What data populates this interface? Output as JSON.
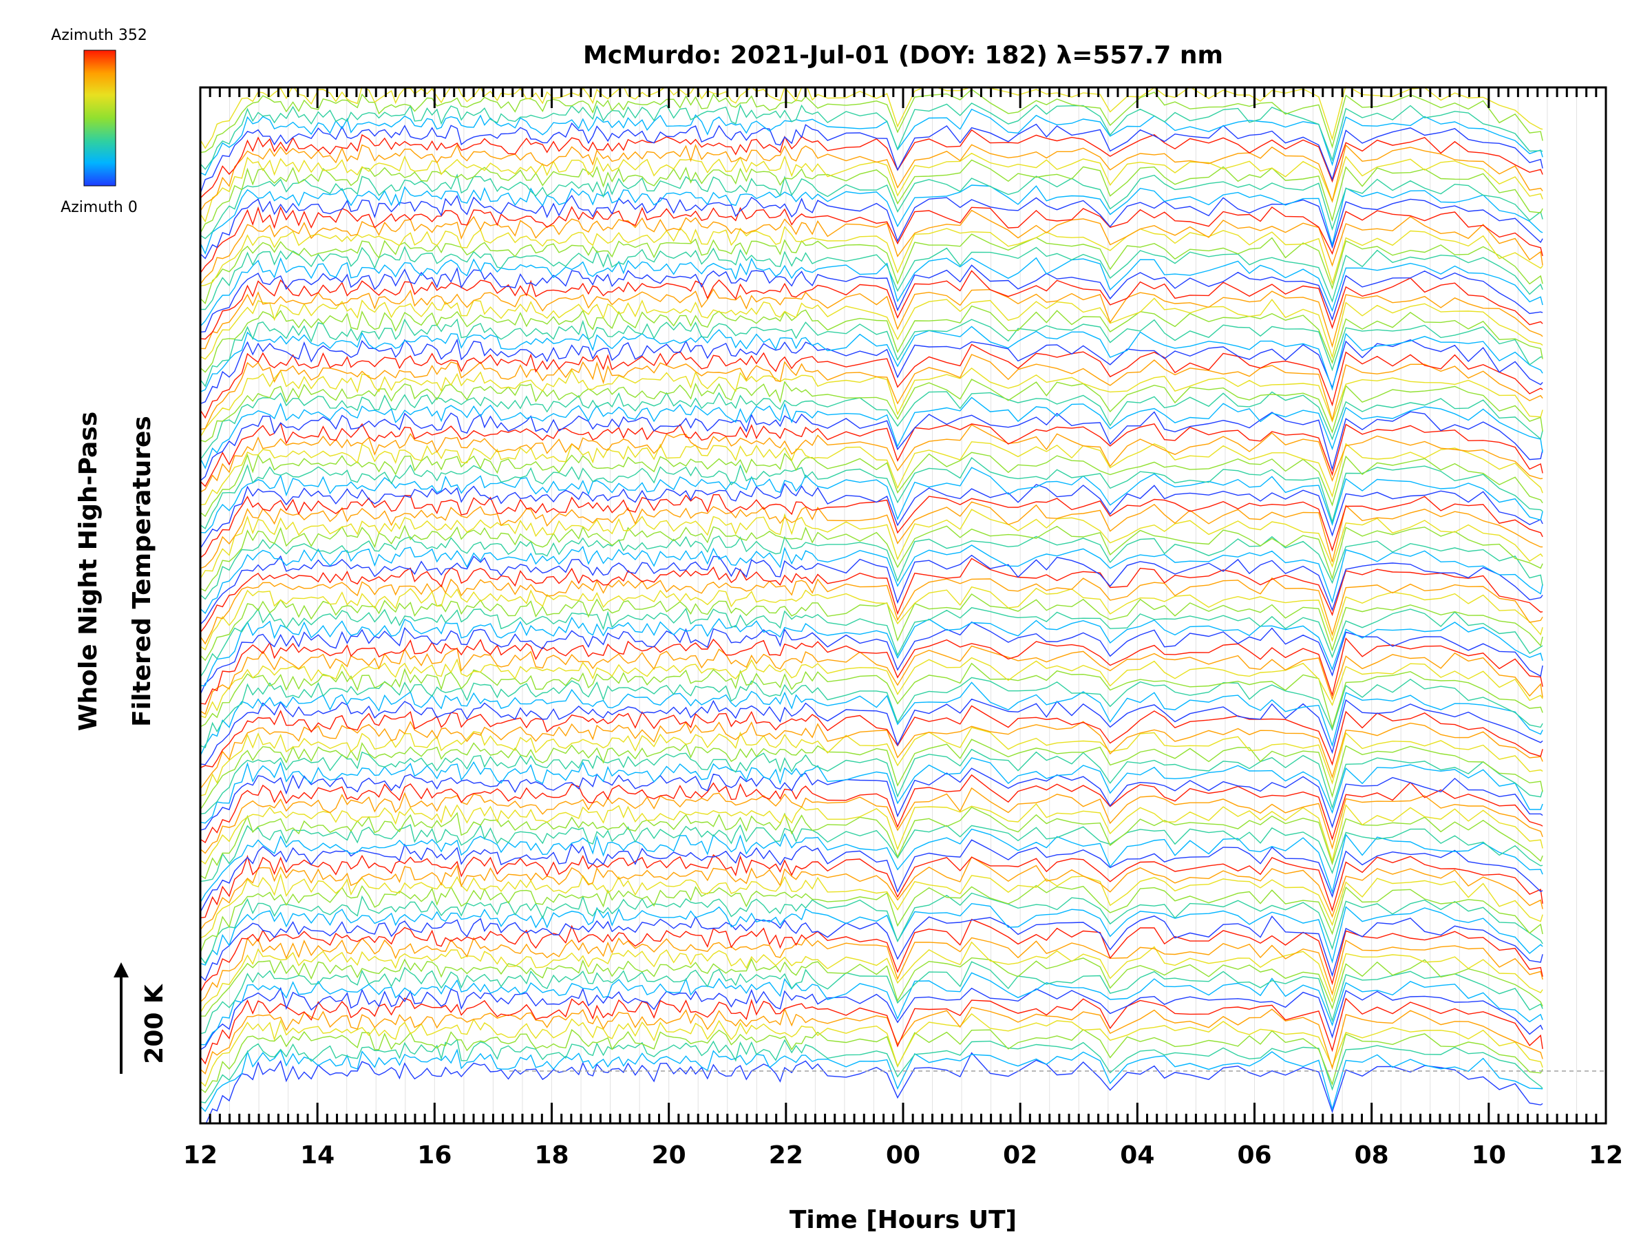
{
  "chart_data": {
    "type": "line",
    "title": "McMurdo: 2021-Jul-01 (DOY: 182) λ=557.7 nm",
    "xlabel": "Time [Hours UT]",
    "ylabel_line1": "Whole Night High-Pass",
    "ylabel_line2": "Filtered Temperatures",
    "scale_label": "200 K",
    "scale_kelvin": 200,
    "x_range_hours_since_12ut": [
      0,
      24
    ],
    "x_tick_labels": [
      "12",
      "14",
      "16",
      "18",
      "20",
      "22",
      "00",
      "02",
      "04",
      "06",
      "08",
      "10",
      "12"
    ],
    "data_span_hours_ut": [
      "12:00",
      "10:55"
    ],
    "minor_grid": true,
    "colorbar": {
      "top_label": "Azimuth 352",
      "bottom_label": "Azimuth 0",
      "colormap": [
        "#1e3cff",
        "#00b4ff",
        "#30d0a0",
        "#90e030",
        "#e8e020",
        "#ffa000",
        "#ff1a00"
      ]
    },
    "series_count": 96,
    "stack_offsets": 15,
    "azimuth_cycle_per_stack": [
      0,
      352
    ]
  }
}
